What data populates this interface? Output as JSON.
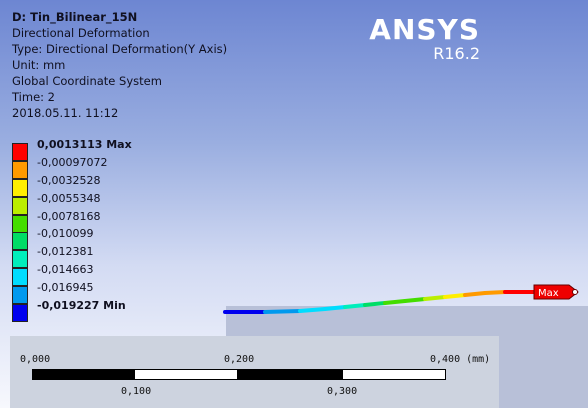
{
  "info": {
    "title": "D: Tin_Bilinear_15N",
    "line1": "Directional Deformation",
    "line2": "Type: Directional Deformation(Y Axis)",
    "line3": "Unit: mm",
    "line4": "Global Coordinate System",
    "line5": "Time: 2",
    "line6": "2018.05.11. 11:12"
  },
  "logo": {
    "brand": "ANSYS",
    "version": "R16.2"
  },
  "legend": {
    "items": [
      {
        "label": "0,0013113 Max",
        "color": "#ff0000",
        "bold": true
      },
      {
        "label": "-0,00097072",
        "color": "#ff9a00",
        "bold": false
      },
      {
        "label": "-0,0032528",
        "color": "#ffee00",
        "bold": false
      },
      {
        "label": "-0,0055348",
        "color": "#bbee00",
        "bold": false
      },
      {
        "label": "-0,0078168",
        "color": "#44dd00",
        "bold": false
      },
      {
        "label": "-0,010099",
        "color": "#00dd66",
        "bold": false
      },
      {
        "label": "-0,012381",
        "color": "#00eebb",
        "bold": false
      },
      {
        "label": "-0,014663",
        "color": "#00ddff",
        "bold": false
      },
      {
        "label": "-0,016945",
        "color": "#0099ee",
        "bold": false
      },
      {
        "label": "-0,019227 Min",
        "color": "#0000ee",
        "bold": true
      }
    ]
  },
  "probe": {
    "label": "Max"
  },
  "scale": {
    "top": [
      "0,000",
      "0,200",
      "0,400 (mm)"
    ],
    "bottom": [
      "0,100",
      "0,300"
    ]
  }
}
